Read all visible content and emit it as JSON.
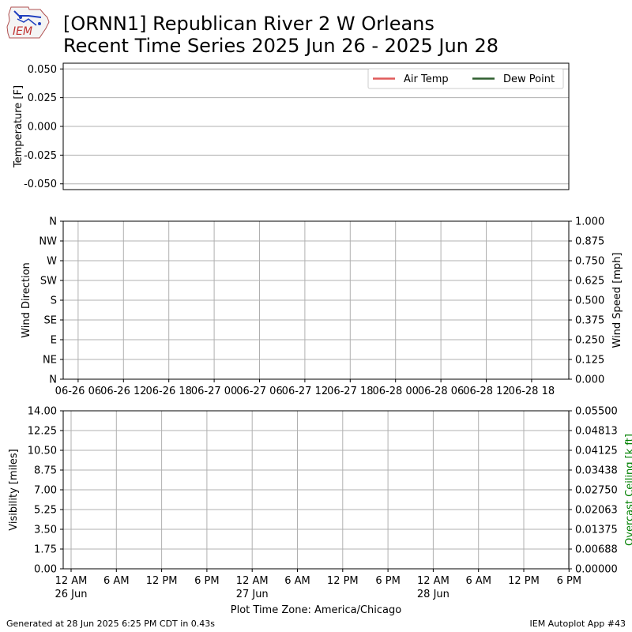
{
  "header": {
    "title_line1": "[ORNN1] Republican River 2 W Orleans",
    "title_line2": "Recent Time Series 2025 Jun 26 - 2025 Jun 28",
    "logo_text": "IEM"
  },
  "footer": {
    "generated": "Generated at 28 Jun 2025 6:25 PM CDT in 0.43s",
    "app": "IEM Autoplot App #43"
  },
  "colors": {
    "air_temp": "#e05a5a",
    "dew_point": "#2e5e2e",
    "grid": "#b0b0b0",
    "ceiling_label": "#008000"
  },
  "chart_data": [
    {
      "type": "line",
      "ylabel": "Temperature [F]",
      "ylim": [
        -0.055,
        0.055
      ],
      "yticks": [
        "0.050",
        "0.025",
        "0.000",
        "-0.025",
        "-0.050"
      ],
      "ytick_values": [
        0.05,
        0.025,
        0,
        -0.025,
        -0.05
      ],
      "grid": "horizontal",
      "legend": "top-right",
      "series": [
        {
          "name": "Air Temp",
          "values": []
        },
        {
          "name": "Dew Point",
          "values": []
        }
      ]
    },
    {
      "type": "scatter",
      "ylabel": "Wind Direction",
      "yticks": [
        "N",
        "NW",
        "W",
        "SW",
        "S",
        "SE",
        "E",
        "NE",
        "N"
      ],
      "ylim": [
        0,
        360
      ],
      "y2label": "Wind Speed [mph]",
      "y2ticks": [
        "1.000",
        "0.875",
        "0.750",
        "0.625",
        "0.500",
        "0.375",
        "0.250",
        "0.125",
        "0.000"
      ],
      "y2lim": [
        0,
        1
      ],
      "xticks": [
        "06-26 06",
        "06-26 12",
        "06-26 18",
        "06-27 00",
        "06-27 06",
        "06-27 12",
        "06-27 18",
        "06-28 00",
        "06-28 06",
        "06-28 12",
        "06-28 18"
      ],
      "grid": "both",
      "series": []
    },
    {
      "type": "line",
      "ylabel": "Visibility [miles]",
      "yticks": [
        "14.00",
        "12.25",
        "10.50",
        "8.75",
        "7.00",
        "5.25",
        "3.50",
        "1.75",
        "0.00"
      ],
      "ylim": [
        0,
        14
      ],
      "y2label": "Overcast Ceiling [k ft]",
      "y2ticks": [
        "0.05500",
        "0.04813",
        "0.04125",
        "0.03438",
        "0.02750",
        "0.02063",
        "0.01375",
        "0.00688",
        "0.00000"
      ],
      "y2lim": [
        0,
        0.055
      ],
      "xticks": [
        {
          "time": "12 AM",
          "date": "26 Jun"
        },
        {
          "time": "6 AM",
          "date": ""
        },
        {
          "time": "12 PM",
          "date": ""
        },
        {
          "time": "6 PM",
          "date": ""
        },
        {
          "time": "12 AM",
          "date": "27 Jun"
        },
        {
          "time": "6 AM",
          "date": ""
        },
        {
          "time": "12 PM",
          "date": ""
        },
        {
          "time": "6 PM",
          "date": ""
        },
        {
          "time": "12 AM",
          "date": "28 Jun"
        },
        {
          "time": "6 AM",
          "date": ""
        },
        {
          "time": "12 PM",
          "date": ""
        },
        {
          "time": "6 PM",
          "date": ""
        }
      ],
      "xlabel": "Plot Time Zone: America/Chicago",
      "grid": "both",
      "series": []
    }
  ]
}
